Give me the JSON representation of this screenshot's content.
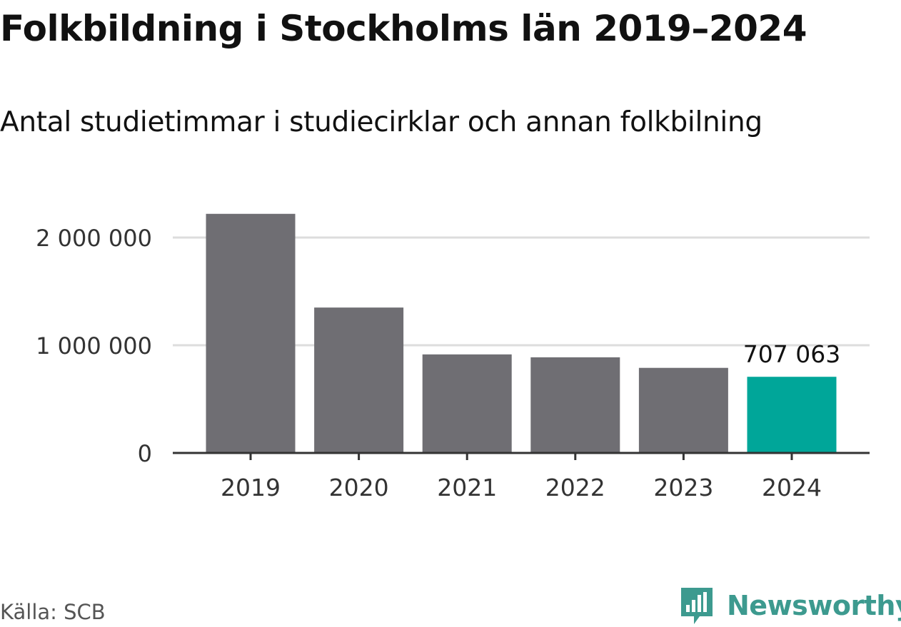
{
  "header": {
    "title": "Folkbildning i Stockholms län 2019–2024",
    "subtitle": "Antal studietimmar i studiecirklar och annan folkbilning"
  },
  "footer": {
    "source": "Källa: SCB",
    "brand": "Newsworthy"
  },
  "colors": {
    "bar": "#6f6e73",
    "highlight": "#00a699",
    "grid": "#dddddd",
    "axis": "#333333",
    "tick_text": "#333333",
    "brand": "#3d9a8f"
  },
  "icons": {
    "brand_logo": "bar-chart-speech-bubble-icon"
  },
  "chart_data": {
    "type": "bar",
    "categories": [
      "2019",
      "2020",
      "2021",
      "2022",
      "2023",
      "2024"
    ],
    "values": [
      2220000,
      1350000,
      915000,
      888000,
      790000,
      707063
    ],
    "highlight_index": 5,
    "data_labels": [
      {
        "index": 5,
        "text": "707 063"
      }
    ],
    "ylim": [
      0,
      2200000
    ],
    "yticks": [
      {
        "value": 0,
        "label": "0"
      },
      {
        "value": 1000000,
        "label": "1 000 000"
      },
      {
        "value": 2000000,
        "label": "2 000 000"
      }
    ],
    "grid": true,
    "legend": "none"
  }
}
